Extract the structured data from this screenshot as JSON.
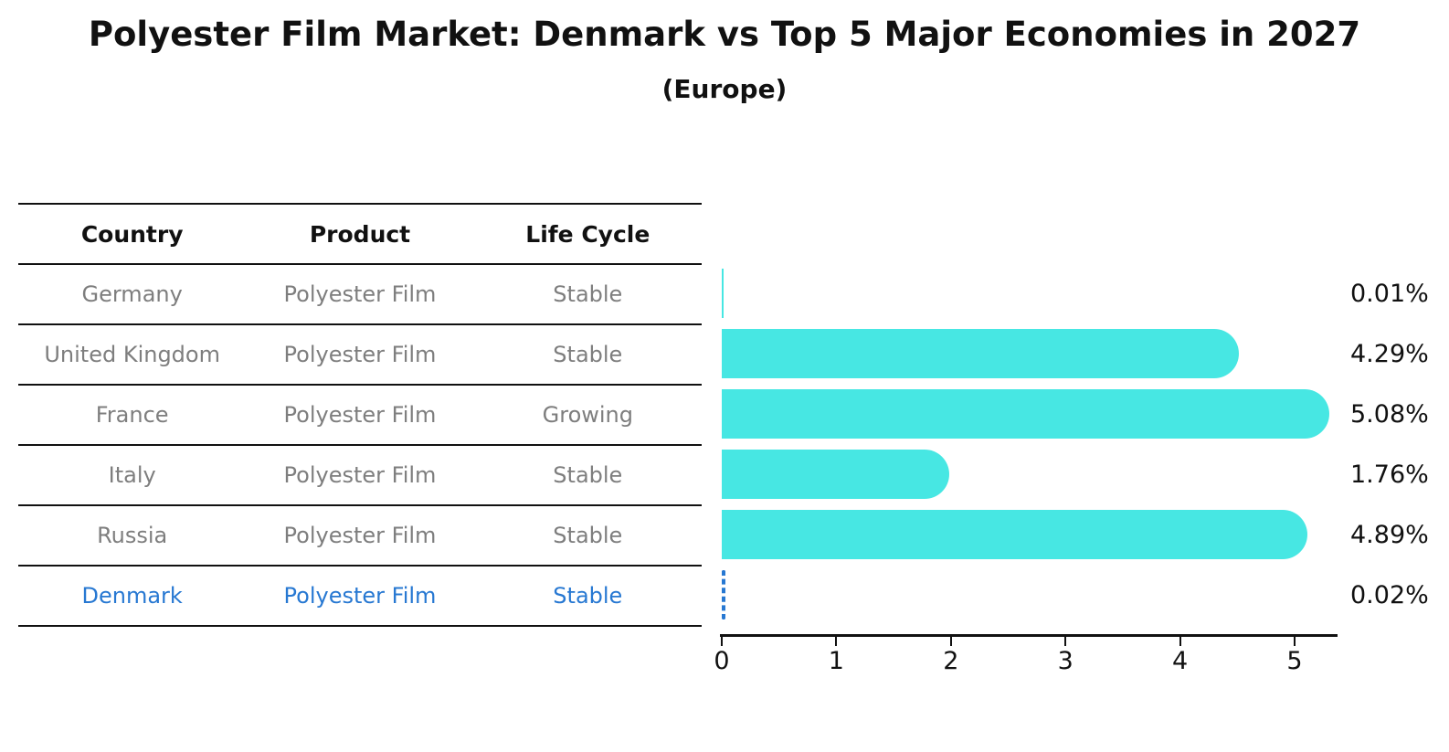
{
  "title": "Polyester Film Market: Denmark vs Top 5 Major Economies in 2027",
  "subtitle": "(Europe)",
  "table": {
    "headers": [
      "Country",
      "Product",
      "Life Cycle"
    ],
    "rows": [
      {
        "country": "Germany",
        "product": "Polyester Film",
        "life_cycle": "Stable",
        "highlighted": false
      },
      {
        "country": "United Kingdom",
        "product": "Polyester Film",
        "life_cycle": "Stable",
        "highlighted": false
      },
      {
        "country": "France",
        "product": "Polyester Film",
        "life_cycle": "Growing",
        "highlighted": false
      },
      {
        "country": "Italy",
        "product": "Polyester Film",
        "life_cycle": "Stable",
        "highlighted": false
      },
      {
        "country": "Russia",
        "product": "Polyester Film",
        "life_cycle": "Stable",
        "highlighted": false
      },
      {
        "country": "Denmark",
        "product": "Polyester Film",
        "life_cycle": "Stable",
        "highlighted": true
      }
    ]
  },
  "chart_data": {
    "type": "bar",
    "orientation": "horizontal",
    "categories": [
      "Germany",
      "United Kingdom",
      "France",
      "Italy",
      "Russia",
      "Denmark"
    ],
    "values": [
      0.01,
      4.29,
      5.08,
      1.76,
      4.89,
      0.02
    ],
    "value_labels": [
      "0.01%",
      "4.29%",
      "5.08%",
      "1.76%",
      "4.89%",
      "0.02%"
    ],
    "xlabel": "",
    "ylabel": "",
    "xticks": [
      0,
      1,
      2,
      3,
      4,
      5
    ],
    "xlim": [
      0,
      5.35
    ],
    "grid": false,
    "legend": false,
    "bar_color": "#47E7E3",
    "highlight_color": "#2778D2",
    "highlight_category": "Denmark"
  },
  "colors": {
    "text_dark": "#111111",
    "text_muted": "#7e7e7e",
    "line": "#111111"
  }
}
